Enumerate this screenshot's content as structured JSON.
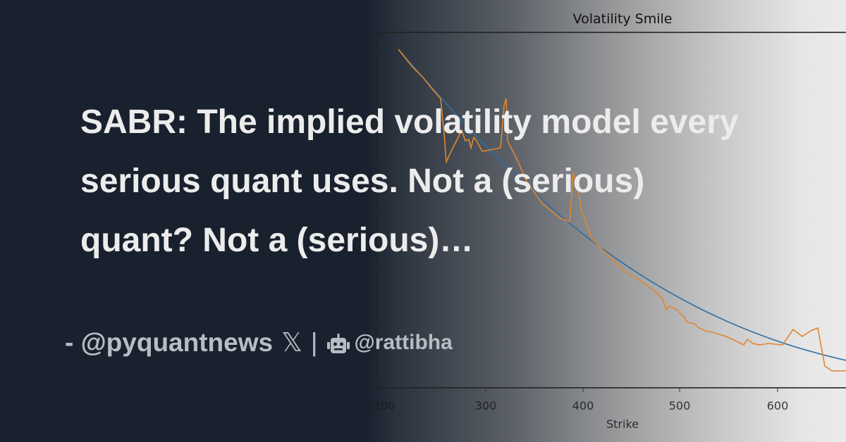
{
  "headline": "SABR: The implied volatility model every serious quant uses. Not a (serious) quant? Not a (serious)…",
  "footer": {
    "author": "- @pyquantnews",
    "x_icon": "x-logo-icon",
    "separator": "|",
    "bot_icon": "robot-icon",
    "source": "@rattibha"
  },
  "chart": {
    "title": "Volatility Smile",
    "xlabel": "Strike",
    "xticks": [
      "200",
      "300",
      "400",
      "500",
      "600"
    ],
    "colors": {
      "fit": "#2f6ea3",
      "market": "#e0862f"
    }
  }
}
